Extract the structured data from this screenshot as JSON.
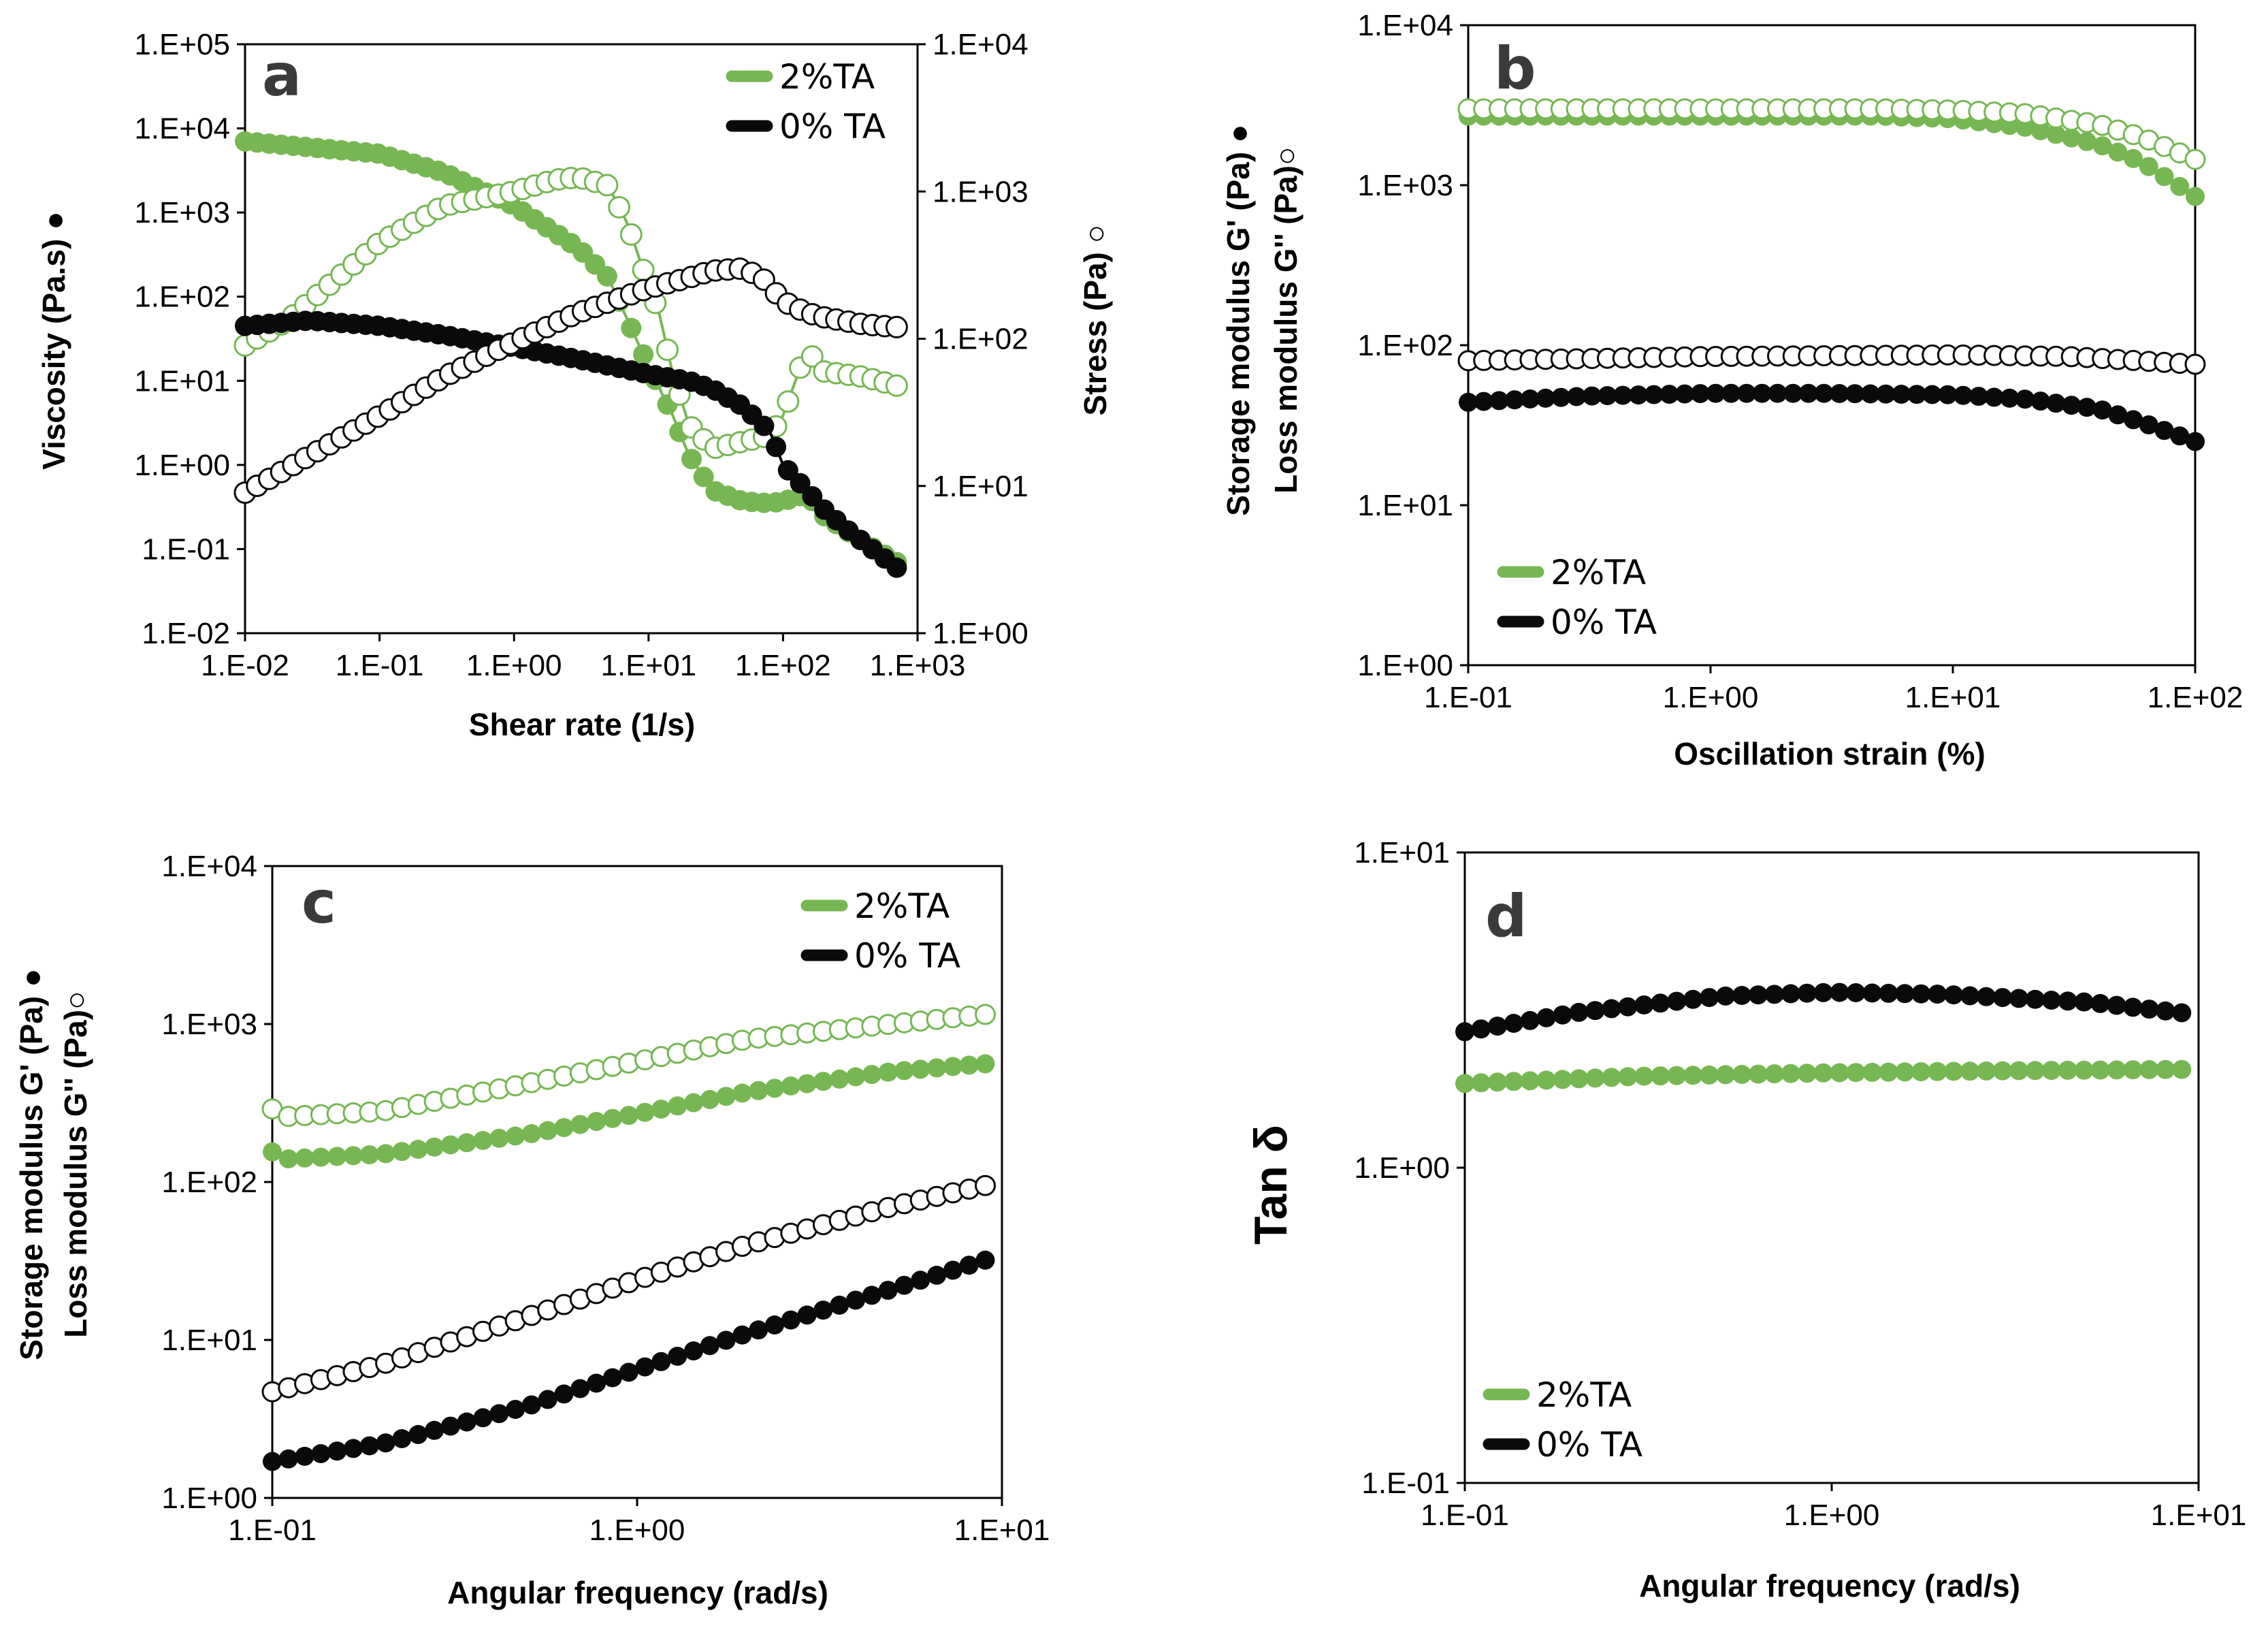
{
  "colors": {
    "green": "#77b753",
    "black": "#0a0a0a"
  },
  "chart_data": [
    {
      "type": "line",
      "panel": "a",
      "xlabel": "Shear rate (1/s)",
      "ylabel": "Viscosity (Pa.s) ●",
      "y2label": "Stress (Pa) ○",
      "xscale": "log",
      "yscale": "log",
      "y2scale": "log",
      "xlim": [
        0.01,
        1000
      ],
      "ylim": [
        0.01,
        100000
      ],
      "y2lim": [
        1,
        10000
      ],
      "x_ticks": [
        "1.E-02",
        "1.E-01",
        "1.E+00",
        "1.E+01",
        "1.E+02",
        "1.E+03"
      ],
      "y_ticks": [
        "1.E-02",
        "1.E-01",
        "1.E+00",
        "1.E+01",
        "1.E+02",
        "1.E+03",
        "1.E+04",
        "1.E+05"
      ],
      "y2_ticks": [
        "1.E+00",
        "1.E+01",
        "1.E+02",
        "1.E+03",
        "1.E+04"
      ],
      "legend": [
        "2%TA",
        "0% TA"
      ],
      "series": [
        {
          "name": "2%TA",
          "role": "viscosity",
          "axis": "y",
          "marker": "filled",
          "color": "green",
          "x": [
            0.01,
            0.1,
            0.3,
            1,
            3,
            5,
            10,
            15,
            20,
            30,
            50,
            80,
            100,
            150,
            200,
            400,
            700
          ],
          "y": [
            7000,
            5000,
            3000,
            1200,
            380,
            170,
            15,
            4,
            1.3,
            0.5,
            0.37,
            0.35,
            0.37,
            0.45,
            0.25,
            0.12,
            0.07
          ]
        },
        {
          "name": "2%TA",
          "role": "stress",
          "axis": "y2",
          "marker": "open",
          "color": "green",
          "x": [
            0.01,
            0.02,
            0.1,
            0.3,
            1,
            2,
            3,
            5,
            7,
            10,
            12,
            15,
            20,
            30,
            50,
            80,
            100,
            150,
            200,
            400,
            700
          ],
          "y": [
            90,
            130,
            450,
            800,
            1000,
            1200,
            1250,
            1100,
            600,
            230,
            150,
            60,
            26,
            18,
            20,
            22,
            30,
            85,
            60,
            55,
            48
          ]
        },
        {
          "name": "0% TA",
          "role": "viscosity",
          "axis": "y",
          "marker": "filled",
          "color": "black",
          "x": [
            0.01,
            0.03,
            0.1,
            0.3,
            1,
            3,
            10,
            20,
            30,
            50,
            80,
            100,
            150,
            200,
            300,
            700
          ],
          "y": [
            45,
            52,
            45,
            35,
            25,
            18,
            12,
            10,
            8,
            5,
            2.5,
            1,
            0.5,
            0.3,
            0.17,
            0.06
          ]
        },
        {
          "name": "0% TA",
          "role": "stress",
          "axis": "y2",
          "marker": "open",
          "color": "black",
          "x": [
            0.01,
            0.03,
            0.1,
            0.3,
            1,
            3,
            10,
            20,
            30,
            50,
            70,
            100,
            150,
            200,
            400,
            700
          ],
          "y": [
            9,
            16,
            30,
            55,
            95,
            150,
            220,
            260,
            290,
            300,
            260,
            180,
            150,
            140,
            125,
            120
          ]
        }
      ]
    },
    {
      "type": "line",
      "panel": "b",
      "xlabel": "Oscillation strain (%)",
      "ylabel": "Storage modulus G' (Pa) ●",
      "ylabel2": "Loss modulus G'' (Pa)○",
      "xscale": "log",
      "yscale": "log",
      "xlim": [
        0.1,
        100
      ],
      "ylim": [
        1,
        10000
      ],
      "x_ticks": [
        "1.E-01",
        "1.E+00",
        "1.E+01",
        "1.E+02"
      ],
      "y_ticks": [
        "1.E+00",
        "1.E+01",
        "1.E+02",
        "1.E+03",
        "1.E+04"
      ],
      "legend": [
        "2%TA",
        "0% TA"
      ],
      "series": [
        {
          "name": "2%TA",
          "role": "G'",
          "marker": "filled",
          "color": "green",
          "x": [
            0.1,
            1,
            5,
            10,
            20,
            40,
            60,
            100
          ],
          "y": [
            2700,
            2700,
            2700,
            2600,
            2300,
            1800,
            1400,
            850
          ]
        },
        {
          "name": "2%TA",
          "role": "G''",
          "marker": "open",
          "color": "green",
          "x": [
            0.1,
            1,
            5,
            10,
            20,
            40,
            60,
            100
          ],
          "y": [
            3000,
            3000,
            3000,
            2950,
            2800,
            2400,
            2000,
            1450
          ]
        },
        {
          "name": "0% TA",
          "role": "G'",
          "marker": "filled",
          "color": "black",
          "x": [
            0.1,
            0.3,
            1,
            3,
            10,
            20,
            40,
            60,
            100
          ],
          "y": [
            44,
            48,
            50,
            50,
            49,
            46,
            40,
            33,
            25
          ]
        },
        {
          "name": "0% TA",
          "role": "G''",
          "marker": "open",
          "color": "black",
          "x": [
            0.1,
            1,
            10,
            30,
            100
          ],
          "y": [
            80,
            85,
            87,
            85,
            76
          ]
        }
      ]
    },
    {
      "type": "line",
      "panel": "c",
      "xlabel": "Angular frequency (rad/s)",
      "ylabel": "Storage modulus G' (Pa) ●",
      "ylabel2": "Loss modulus G'' (Pa)○",
      "xscale": "log",
      "yscale": "log",
      "xlim": [
        0.1,
        10
      ],
      "ylim": [
        1,
        10000
      ],
      "x_ticks": [
        "1.E-01",
        "1.E+00",
        "1.E+01"
      ],
      "y_ticks": [
        "1.E+00",
        "1.E+01",
        "1.E+02",
        "1.E+03",
        "1.E+04"
      ],
      "legend": [
        "2%TA",
        "0% TA"
      ],
      "series": [
        {
          "name": "2%TA",
          "role": "G'",
          "marker": "filled",
          "color": "green",
          "x": [
            0.1,
            0.11,
            0.2,
            0.5,
            1,
            2,
            5,
            9
          ],
          "y": [
            155,
            140,
            150,
            200,
            270,
            370,
            500,
            560
          ]
        },
        {
          "name": "2%TA",
          "role": "G''",
          "marker": "open",
          "color": "green",
          "x": [
            0.1,
            0.11,
            0.2,
            0.5,
            1,
            2,
            5,
            9
          ],
          "y": [
            290,
            260,
            280,
            420,
            580,
            800,
            1000,
            1150
          ]
        },
        {
          "name": "0% TA",
          "role": "G'",
          "marker": "filled",
          "color": "black",
          "x": [
            0.1,
            0.2,
            0.5,
            1,
            2,
            5,
            9
          ],
          "y": [
            1.7,
            2.2,
            3.8,
            6.5,
            11,
            21,
            32
          ]
        },
        {
          "name": "0% TA",
          "role": "G''",
          "marker": "open",
          "color": "black",
          "x": [
            0.1,
            0.2,
            0.5,
            1,
            2,
            5,
            9
          ],
          "y": [
            4.7,
            7,
            14,
            24,
            40,
            70,
            95
          ]
        }
      ]
    },
    {
      "type": "line",
      "panel": "d",
      "xlabel": "Angular frequency (rad/s)",
      "ylabel": "Tan δ",
      "xscale": "log",
      "yscale": "log",
      "xlim": [
        0.1,
        10
      ],
      "ylim": [
        0.1,
        10
      ],
      "x_ticks": [
        "1.E-01",
        "1.E+00",
        "1.E+01"
      ],
      "y_ticks": [
        "1.E-01",
        "1.E+00",
        "1.E+01"
      ],
      "legend": [
        "2%TA",
        "0% TA"
      ],
      "series": [
        {
          "name": "2%TA",
          "marker": "filled",
          "color": "green",
          "x": [
            0.1,
            0.3,
            1,
            3,
            9
          ],
          "y": [
            1.85,
            1.95,
            2.0,
            2.03,
            2.05
          ]
        },
        {
          "name": "0% TA",
          "marker": "filled",
          "color": "black",
          "x": [
            0.1,
            0.2,
            0.5,
            1,
            2,
            5,
            9
          ],
          "y": [
            2.7,
            3.1,
            3.5,
            3.6,
            3.55,
            3.35,
            3.1
          ]
        }
      ]
    }
  ]
}
